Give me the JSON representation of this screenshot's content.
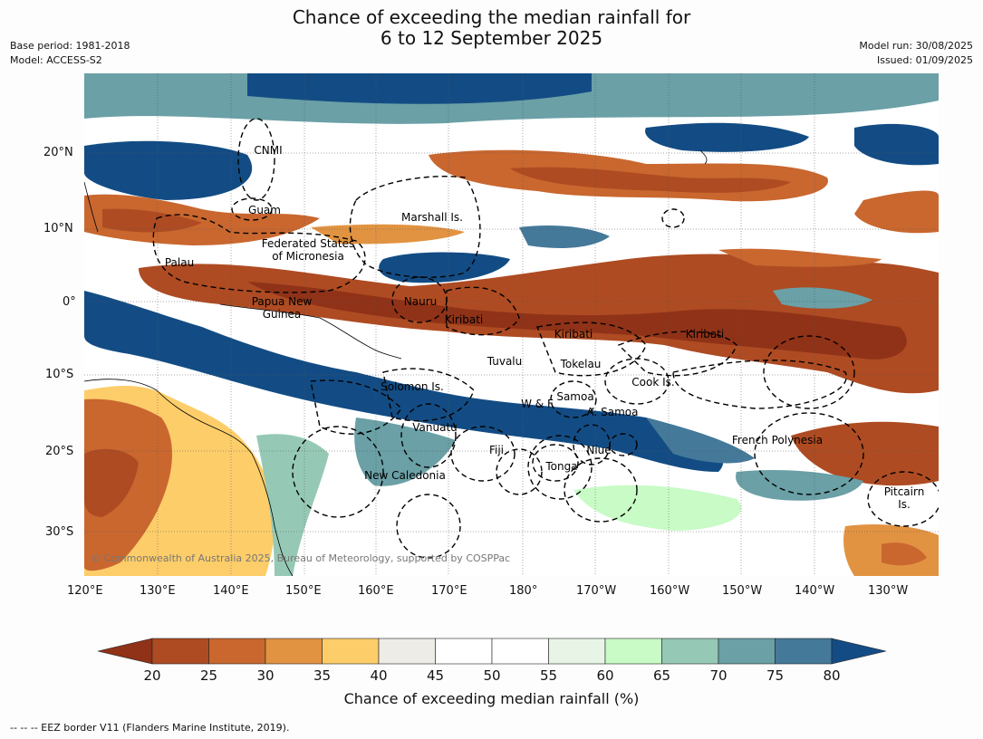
{
  "title_line1": "Chance of exceeding the median rainfall for",
  "title_line2": "6 to 12 September 2025",
  "meta_left": [
    "Base period: 1981-2018",
    "Model: ACCESS-S2"
  ],
  "meta_right": [
    "Model run: 30/08/2025",
    "Issued: 01/09/2025"
  ],
  "lat_ticks": [
    "20°N",
    "10°N",
    "0°",
    "10°S",
    "20°S",
    "30°S"
  ],
  "lon_ticks": [
    "120°E",
    "130°E",
    "140°E",
    "150°E",
    "160°E",
    "170°E",
    "180°",
    "170°W",
    "160°W",
    "150°W",
    "140°W",
    "130°W"
  ],
  "labels": [
    {
      "key": "cnmi",
      "text": "CNMI"
    },
    {
      "key": "guam",
      "text": "Guam"
    },
    {
      "key": "marshall",
      "text": "Marshall Is."
    },
    {
      "key": "fsm",
      "text": "Federated States\nof Micronesia"
    },
    {
      "key": "palau",
      "text": "Palau"
    },
    {
      "key": "png",
      "text": "Papua New\nGuinea"
    },
    {
      "key": "nauru",
      "text": "Nauru"
    },
    {
      "key": "kiribati1",
      "text": "Kiribati"
    },
    {
      "key": "kiribati2",
      "text": "Kiribati"
    },
    {
      "key": "kiribati3",
      "text": "Kiribati"
    },
    {
      "key": "tuvalu",
      "text": "Tuvalu"
    },
    {
      "key": "tokelau",
      "text": "Tokelau"
    },
    {
      "key": "cook",
      "text": "Cook Is."
    },
    {
      "key": "solomon",
      "text": "Solomon Is."
    },
    {
      "key": "wf",
      "text": "W & F"
    },
    {
      "key": "samoa",
      "text": "Samoa"
    },
    {
      "key": "asamoa",
      "text": "A. Samoa"
    },
    {
      "key": "vanuatu",
      "text": "Vanuatu"
    },
    {
      "key": "fiji",
      "text": "Fiji"
    },
    {
      "key": "niue",
      "text": "Niue"
    },
    {
      "key": "tonga",
      "text": "Tonga"
    },
    {
      "key": "frpoly",
      "text": "French Polynesia"
    },
    {
      "key": "newcal",
      "text": "New Caledonia"
    },
    {
      "key": "pitcairn",
      "text": "Pitcairn\nIs."
    }
  ],
  "credit": "© Commonwealth of Australia 2025, Bureau of Meteorology, supported by COSPPac",
  "colorbar": {
    "ticks": [
      "20",
      "25",
      "30",
      "35",
      "40",
      "45",
      "50",
      "55",
      "60",
      "65",
      "70",
      "75",
      "80"
    ],
    "colors": [
      "#8f3218",
      "#ae4b22",
      "#c9672f",
      "#e19342",
      "#fdcd6a",
      "#eeece7",
      "#ffffff",
      "#ffffff",
      "#e8f5e6",
      "#c8fbc6",
      "#96c9b5",
      "#6aa0a6",
      "#45799a",
      "#134c84"
    ],
    "title": "Chance of exceeding median rainfall (%)"
  },
  "footer": "--  --  -- EEZ border V11 (Flanders Marine Institute, 2019)."
}
